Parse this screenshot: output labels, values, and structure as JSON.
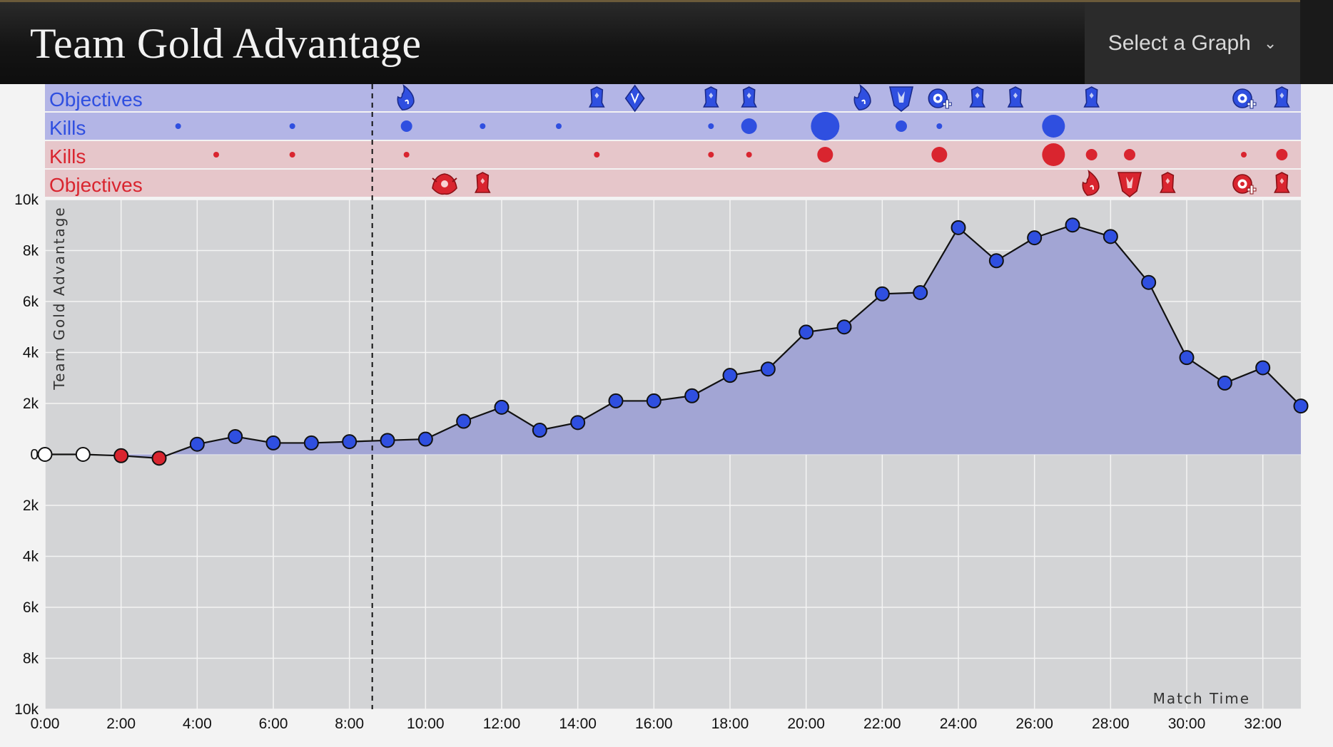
{
  "header": {
    "title": "Team Gold Advantage",
    "select_label": "Select a Graph"
  },
  "colors": {
    "blue": "#2f4fe0",
    "blue_dark": "#1a2a8a",
    "red": "#d9252f",
    "red_dark": "#8a1016",
    "blue_band": "#b3b5e6",
    "red_band": "#e6c6ca",
    "area_fill": "#a2a5d4",
    "plot_bg": "#d3d4d6"
  },
  "timeline_rows": [
    {
      "label": "Objectives",
      "team": "blue"
    },
    {
      "label": "Kills",
      "team": "blue"
    },
    {
      "label": "Kills",
      "team": "red"
    },
    {
      "label": "Objectives",
      "team": "red"
    }
  ],
  "events": {
    "blue_objectives": [
      {
        "t": 9.5,
        "icon": "infernal-dragon-icon"
      },
      {
        "t": 14.5,
        "icon": "tower-icon"
      },
      {
        "t": 15.5,
        "icon": "rift-herald-icon"
      },
      {
        "t": 17.5,
        "icon": "tower-icon"
      },
      {
        "t": 18.5,
        "icon": "tower-icon"
      },
      {
        "t": 21.5,
        "icon": "infernal-dragon-icon"
      },
      {
        "t": 22.5,
        "icon": "baron-nashor-icon"
      },
      {
        "t": 23.5,
        "icon": "inhibitor-icon"
      },
      {
        "t": 24.5,
        "icon": "tower-icon"
      },
      {
        "t": 25.5,
        "icon": "tower-icon"
      },
      {
        "t": 27.5,
        "icon": "tower-icon"
      },
      {
        "t": 31.5,
        "icon": "inhibitor-icon"
      },
      {
        "t": 32.5,
        "icon": "tower-icon"
      }
    ],
    "blue_kills": [
      {
        "t": 3.5,
        "n": 1
      },
      {
        "t": 6.5,
        "n": 1
      },
      {
        "t": 9.5,
        "n": 2
      },
      {
        "t": 11.5,
        "n": 1
      },
      {
        "t": 13.5,
        "n": 1
      },
      {
        "t": 17.5,
        "n": 1
      },
      {
        "t": 18.5,
        "n": 3
      },
      {
        "t": 20.5,
        "n": 5
      },
      {
        "t": 22.5,
        "n": 2
      },
      {
        "t": 23.5,
        "n": 1
      },
      {
        "t": 26.5,
        "n": 4
      }
    ],
    "red_kills": [
      {
        "t": 4.5,
        "n": 1
      },
      {
        "t": 6.5,
        "n": 1
      },
      {
        "t": 9.5,
        "n": 1
      },
      {
        "t": 14.5,
        "n": 1
      },
      {
        "t": 17.5,
        "n": 1
      },
      {
        "t": 18.5,
        "n": 1
      },
      {
        "t": 20.5,
        "n": 3
      },
      {
        "t": 23.5,
        "n": 3
      },
      {
        "t": 26.5,
        "n": 4
      },
      {
        "t": 27.5,
        "n": 2
      },
      {
        "t": 28.5,
        "n": 2
      },
      {
        "t": 31.5,
        "n": 1
      },
      {
        "t": 32.5,
        "n": 2
      }
    ],
    "red_objectives": [
      {
        "t": 10.5,
        "icon": "elder-dragon-icon"
      },
      {
        "t": 11.5,
        "icon": "tower-icon"
      },
      {
        "t": 27.5,
        "icon": "infernal-dragon-icon"
      },
      {
        "t": 28.5,
        "icon": "baron-nashor-icon"
      },
      {
        "t": 29.5,
        "icon": "tower-icon"
      },
      {
        "t": 31.5,
        "icon": "inhibitor-icon"
      },
      {
        "t": 32.5,
        "icon": "tower-icon"
      }
    ]
  },
  "current_time_marker": 8.6,
  "chart_data": {
    "type": "area",
    "xlabel": "Match Time",
    "ylabel": "Team Gold Advantage",
    "xlim": [
      0,
      33
    ],
    "ylim": [
      -10000,
      10000
    ],
    "x_ticks": [
      "0:00",
      "2:00",
      "4:00",
      "6:00",
      "8:00",
      "10:00",
      "12:00",
      "14:00",
      "16:00",
      "18:00",
      "20:00",
      "22:00",
      "24:00",
      "26:00",
      "28:00",
      "30:00",
      "32:00"
    ],
    "y_ticks": [
      "10k",
      "8k",
      "6k",
      "4k",
      "2k",
      "0",
      "2k",
      "4k",
      "6k",
      "8k",
      "10k"
    ],
    "grid": true,
    "series": [
      {
        "x": [
          0,
          1,
          2,
          3,
          4,
          5,
          6,
          7,
          8,
          9,
          10,
          11,
          12,
          13,
          14,
          15,
          16,
          17,
          18,
          19,
          20,
          21,
          22,
          23,
          24,
          25,
          26,
          27,
          28,
          29,
          30,
          31,
          32,
          33
        ],
        "values": [
          0,
          0,
          -50,
          -150,
          400,
          700,
          450,
          450,
          500,
          550,
          600,
          1300,
          1850,
          950,
          1250,
          2100,
          2100,
          2300,
          3100,
          3350,
          4800,
          5000,
          6300,
          6350,
          8900,
          7600,
          8500,
          9000,
          8550,
          6750,
          3800,
          2800,
          3400,
          1900
        ],
        "point_team": [
          "neutral",
          "neutral",
          "red",
          "red",
          "blue",
          "blue",
          "blue",
          "blue",
          "blue",
          "blue",
          "blue",
          "blue",
          "blue",
          "blue",
          "blue",
          "blue",
          "blue",
          "blue",
          "blue",
          "blue",
          "blue",
          "blue",
          "blue",
          "blue",
          "blue",
          "blue",
          "blue",
          "blue",
          "blue",
          "blue",
          "blue",
          "blue",
          "blue",
          "blue"
        ]
      }
    ]
  }
}
